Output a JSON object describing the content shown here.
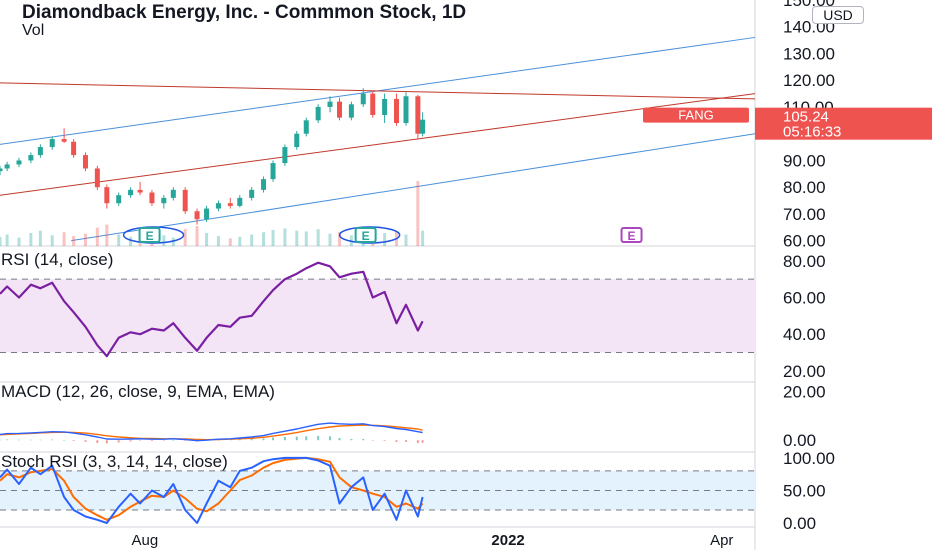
{
  "header": {
    "title": "Diamondback Energy, Inc. - Commmon Stock, 1D",
    "vol_label": "Vol",
    "currency": "USD"
  },
  "colors": {
    "up": "#26a69a",
    "down": "#ef5350",
    "channel_blue": "#4a90d9",
    "channel_red": "#c0392b",
    "rsi_line": "#7b1fa2",
    "rsi_band": "#f3e5f5",
    "macd_line": "#2962ff",
    "signal_line": "#ff6d00",
    "stoch_k": "#2962ff",
    "stoch_d": "#ff6d00",
    "stoch_band": "#e3f2fd",
    "price_tag": "#ef5350",
    "earnings_teal": "#26a69a",
    "earnings_purple": "#ab47bc"
  },
  "chart_data": [
    {
      "type": "candlestick",
      "name": "price",
      "price_tick_labels": [
        "150.00",
        "140.00",
        "130.00",
        "120.00",
        "110.00",
        "100.00",
        "90.00",
        "80.00",
        "70.00",
        "60.00"
      ],
      "price_ticks": [
        150,
        140,
        130,
        120,
        110,
        100,
        90,
        80,
        70,
        60
      ],
      "ylim": [
        58,
        150
      ],
      "xlim": [
        "2021-06-01",
        "2022-04-15"
      ],
      "x_tick_labels": [
        "Aug",
        "2022",
        "Apr"
      ],
      "x_ticks": [
        "2021-08-01",
        "2022-01-01",
        "2022-04-01"
      ],
      "last_price": {
        "symbol": "FANG",
        "price": "105.24",
        "countdown": "05:16:33",
        "value": 105.24
      },
      "series": [
        {
          "x": "2021-06-01",
          "o": 86.0,
          "h": 88.0,
          "l": 84.5,
          "c": 87.0
        },
        {
          "x": "2021-06-04",
          "o": 87.0,
          "h": 89.5,
          "l": 86.0,
          "c": 88.5
        },
        {
          "x": "2021-06-09",
          "o": 88.5,
          "h": 91.0,
          "l": 87.5,
          "c": 90.0
        },
        {
          "x": "2021-06-14",
          "o": 90.0,
          "h": 93.0,
          "l": 89.0,
          "c": 92.0
        },
        {
          "x": "2021-06-18",
          "o": 92.0,
          "h": 96.0,
          "l": 91.0,
          "c": 95.0
        },
        {
          "x": "2021-06-23",
          "o": 95.0,
          "h": 99.0,
          "l": 94.0,
          "c": 98.0
        },
        {
          "x": "2021-06-28",
          "o": 98.0,
          "h": 102.0,
          "l": 96.5,
          "c": 97.0
        },
        {
          "x": "2021-07-02",
          "o": 97.0,
          "h": 98.0,
          "l": 91.0,
          "c": 92.0
        },
        {
          "x": "2021-07-07",
          "o": 92.0,
          "h": 93.0,
          "l": 86.0,
          "c": 87.0
        },
        {
          "x": "2021-07-12",
          "o": 87.0,
          "h": 88.0,
          "l": 79.0,
          "c": 80.0
        },
        {
          "x": "2021-07-16",
          "o": 80.0,
          "h": 81.0,
          "l": 72.0,
          "c": 74.0
        },
        {
          "x": "2021-07-21",
          "o": 74.0,
          "h": 78.0,
          "l": 73.0,
          "c": 77.0
        },
        {
          "x": "2021-07-26",
          "o": 77.0,
          "h": 80.0,
          "l": 76.0,
          "c": 79.0
        },
        {
          "x": "2021-07-30",
          "o": 79.0,
          "h": 82.0,
          "l": 77.0,
          "c": 78.0
        },
        {
          "x": "2021-08-04",
          "o": 78.0,
          "h": 79.0,
          "l": 73.0,
          "c": 74.0
        },
        {
          "x": "2021-08-09",
          "o": 74.0,
          "h": 77.0,
          "l": 72.0,
          "c": 76.0
        },
        {
          "x": "2021-08-13",
          "o": 76.0,
          "h": 80.0,
          "l": 75.0,
          "c": 79.0
        },
        {
          "x": "2021-08-18",
          "o": 79.0,
          "h": 80.0,
          "l": 70.0,
          "c": 71.0
        },
        {
          "x": "2021-08-23",
          "o": 71.0,
          "h": 72.0,
          "l": 66.0,
          "c": 68.0
        },
        {
          "x": "2021-08-27",
          "o": 68.0,
          "h": 73.0,
          "l": 67.0,
          "c": 72.0
        },
        {
          "x": "2021-09-01",
          "o": 72.0,
          "h": 75.0,
          "l": 71.0,
          "c": 74.0
        },
        {
          "x": "2021-09-06",
          "o": 74.0,
          "h": 76.0,
          "l": 72.0,
          "c": 73.0
        },
        {
          "x": "2021-09-10",
          "o": 73.0,
          "h": 77.0,
          "l": 72.5,
          "c": 76.0
        },
        {
          "x": "2021-09-15",
          "o": 76.0,
          "h": 80.0,
          "l": 75.0,
          "c": 79.0
        },
        {
          "x": "2021-09-20",
          "o": 79.0,
          "h": 84.0,
          "l": 78.0,
          "c": 83.0
        },
        {
          "x": "2021-09-24",
          "o": 83.0,
          "h": 90.0,
          "l": 82.0,
          "c": 89.0
        },
        {
          "x": "2021-09-29",
          "o": 89.0,
          "h": 96.0,
          "l": 88.0,
          "c": 95.0
        },
        {
          "x": "2021-10-04",
          "o": 95.0,
          "h": 101.0,
          "l": 94.0,
          "c": 100.0
        },
        {
          "x": "2021-10-08",
          "o": 100.0,
          "h": 106.0,
          "l": 99.0,
          "c": 105.0
        },
        {
          "x": "2021-10-13",
          "o": 105.0,
          "h": 111.0,
          "l": 104.0,
          "c": 110.0
        },
        {
          "x": "2021-10-18",
          "o": 110.0,
          "h": 114.0,
          "l": 108.0,
          "c": 112.0
        },
        {
          "x": "2021-10-22",
          "o": 112.0,
          "h": 113.5,
          "l": 105.0,
          "c": 106.0
        },
        {
          "x": "2021-10-27",
          "o": 106.0,
          "h": 112.0,
          "l": 105.0,
          "c": 111.0
        },
        {
          "x": "2021-11-01",
          "o": 111.0,
          "h": 117.0,
          "l": 110.0,
          "c": 115.0
        },
        {
          "x": "2021-11-05",
          "o": 115.0,
          "h": 116.0,
          "l": 106.0,
          "c": 107.0
        },
        {
          "x": "2021-11-10",
          "o": 107.0,
          "h": 115.0,
          "l": 104.0,
          "c": 113.0
        },
        {
          "x": "2021-11-15",
          "o": 113.0,
          "h": 115.0,
          "l": 103.0,
          "c": 104.0
        },
        {
          "x": "2021-11-19",
          "o": 104.0,
          "h": 115.5,
          "l": 103.0,
          "c": 114.0
        },
        {
          "x": "2021-11-24",
          "o": 114.0,
          "h": 114.5,
          "l": 98.0,
          "c": 100.0
        },
        {
          "x": "2021-11-26",
          "o": 100.0,
          "h": 108.0,
          "l": 99.0,
          "c": 105.24
        }
      ],
      "volume": [
        {
          "x": "2021-06-01",
          "v": 1.2,
          "up": true
        },
        {
          "x": "2021-06-04",
          "v": 1.5,
          "up": true
        },
        {
          "x": "2021-06-09",
          "v": 1.1,
          "up": true
        },
        {
          "x": "2021-06-14",
          "v": 1.7,
          "up": true
        },
        {
          "x": "2021-06-18",
          "v": 2.0,
          "up": true
        },
        {
          "x": "2021-06-23",
          "v": 1.4,
          "up": true
        },
        {
          "x": "2021-06-28",
          "v": 1.8,
          "up": false
        },
        {
          "x": "2021-07-02",
          "v": 1.3,
          "up": false
        },
        {
          "x": "2021-07-07",
          "v": 1.6,
          "up": false
        },
        {
          "x": "2021-07-12",
          "v": 2.4,
          "up": false
        },
        {
          "x": "2021-07-16",
          "v": 2.8,
          "up": false
        },
        {
          "x": "2021-07-21",
          "v": 1.5,
          "up": true
        },
        {
          "x": "2021-07-26",
          "v": 1.2,
          "up": true
        },
        {
          "x": "2021-07-30",
          "v": 1.3,
          "up": false
        },
        {
          "x": "2021-08-04",
          "v": 1.9,
          "up": false
        },
        {
          "x": "2021-08-09",
          "v": 1.4,
          "up": true
        },
        {
          "x": "2021-08-13",
          "v": 1.1,
          "up": true
        },
        {
          "x": "2021-08-18",
          "v": 2.2,
          "up": false
        },
        {
          "x": "2021-08-23",
          "v": 2.6,
          "up": false
        },
        {
          "x": "2021-08-27",
          "v": 1.7,
          "up": true
        },
        {
          "x": "2021-09-01",
          "v": 1.3,
          "up": true
        },
        {
          "x": "2021-09-06",
          "v": 1.0,
          "up": false
        },
        {
          "x": "2021-09-10",
          "v": 1.2,
          "up": true
        },
        {
          "x": "2021-09-15",
          "v": 1.5,
          "up": true
        },
        {
          "x": "2021-09-20",
          "v": 1.8,
          "up": true
        },
        {
          "x": "2021-09-24",
          "v": 2.1,
          "up": true
        },
        {
          "x": "2021-09-29",
          "v": 2.3,
          "up": true
        },
        {
          "x": "2021-10-04",
          "v": 2.0,
          "up": true
        },
        {
          "x": "2021-10-08",
          "v": 1.9,
          "up": true
        },
        {
          "x": "2021-10-13",
          "v": 2.2,
          "up": true
        },
        {
          "x": "2021-10-18",
          "v": 1.6,
          "up": true
        },
        {
          "x": "2021-10-22",
          "v": 1.8,
          "up": false
        },
        {
          "x": "2021-10-27",
          "v": 1.4,
          "up": true
        },
        {
          "x": "2021-11-01",
          "v": 2.0,
          "up": true
        },
        {
          "x": "2021-11-05",
          "v": 2.3,
          "up": false
        },
        {
          "x": "2021-11-10",
          "v": 1.7,
          "up": true
        },
        {
          "x": "2021-11-15",
          "v": 1.9,
          "up": false
        },
        {
          "x": "2021-11-19",
          "v": 1.5,
          "up": true
        },
        {
          "x": "2021-11-24",
          "v": 8.5,
          "up": false
        },
        {
          "x": "2021-11-26",
          "v": 2.0,
          "up": true
        }
      ],
      "trendlines": [
        {
          "color": "blue",
          "points": [
            [
              "2021-06-01",
              96
            ],
            [
              "2022-04-15",
              136
            ]
          ]
        },
        {
          "color": "blue",
          "points": [
            [
              "2021-07-01",
              60
            ],
            [
              "2022-04-15",
              100
            ]
          ]
        },
        {
          "color": "red",
          "points": [
            [
              "2021-06-01",
              119
            ],
            [
              "2022-04-15",
              113
            ]
          ]
        },
        {
          "color": "red",
          "points": [
            [
              "2021-06-01",
              77
            ],
            [
              "2022-04-15",
              115
            ]
          ]
        }
      ],
      "earnings_markers": [
        {
          "x": "2021-08-03",
          "label": "E",
          "color": "teal"
        },
        {
          "x": "2021-11-02",
          "label": "E",
          "color": "teal"
        },
        {
          "x": "2022-02-22",
          "label": "E",
          "color": "purple"
        }
      ]
    },
    {
      "type": "line",
      "name": "rsi",
      "title": "RSI (14, close)",
      "tick_labels": [
        "80.00",
        "60.00",
        "40.00",
        "20.00"
      ],
      "ticks": [
        80,
        60,
        40,
        20
      ],
      "band": [
        30,
        70
      ],
      "ylim": [
        15,
        87
      ],
      "series": [
        {
          "x": "2021-06-01",
          "y": 62
        },
        {
          "x": "2021-06-04",
          "y": 66
        },
        {
          "x": "2021-06-09",
          "y": 60
        },
        {
          "x": "2021-06-14",
          "y": 67
        },
        {
          "x": "2021-06-18",
          "y": 65
        },
        {
          "x": "2021-06-23",
          "y": 68
        },
        {
          "x": "2021-06-28",
          "y": 58
        },
        {
          "x": "2021-07-02",
          "y": 52
        },
        {
          "x": "2021-07-07",
          "y": 44
        },
        {
          "x": "2021-07-12",
          "y": 34
        },
        {
          "x": "2021-07-16",
          "y": 28
        },
        {
          "x": "2021-07-21",
          "y": 38
        },
        {
          "x": "2021-07-26",
          "y": 41
        },
        {
          "x": "2021-07-30",
          "y": 40
        },
        {
          "x": "2021-08-04",
          "y": 43
        },
        {
          "x": "2021-08-09",
          "y": 42
        },
        {
          "x": "2021-08-13",
          "y": 46
        },
        {
          "x": "2021-08-18",
          "y": 38
        },
        {
          "x": "2021-08-23",
          "y": 31
        },
        {
          "x": "2021-08-27",
          "y": 38
        },
        {
          "x": "2021-09-01",
          "y": 45
        },
        {
          "x": "2021-09-06",
          "y": 44
        },
        {
          "x": "2021-09-10",
          "y": 49
        },
        {
          "x": "2021-09-15",
          "y": 50
        },
        {
          "x": "2021-09-20",
          "y": 58
        },
        {
          "x": "2021-09-24",
          "y": 64
        },
        {
          "x": "2021-09-29",
          "y": 70
        },
        {
          "x": "2021-10-04",
          "y": 73
        },
        {
          "x": "2021-10-08",
          "y": 76
        },
        {
          "x": "2021-10-13",
          "y": 79
        },
        {
          "x": "2021-10-18",
          "y": 77
        },
        {
          "x": "2021-10-22",
          "y": 71
        },
        {
          "x": "2021-10-27",
          "y": 73
        },
        {
          "x": "2021-11-01",
          "y": 74
        },
        {
          "x": "2021-11-05",
          "y": 60
        },
        {
          "x": "2021-11-10",
          "y": 63
        },
        {
          "x": "2021-11-15",
          "y": 46
        },
        {
          "x": "2021-11-19",
          "y": 56
        },
        {
          "x": "2021-11-24",
          "y": 42
        },
        {
          "x": "2021-11-26",
          "y": 47
        }
      ]
    },
    {
      "type": "line",
      "name": "macd",
      "title": "MACD (12, 26, close, 9, EMA, EMA)",
      "tick_labels": [
        "20.00",
        "0.00"
      ],
      "ticks": [
        20,
        0
      ],
      "ylim": [
        -4,
        23
      ],
      "macd": [
        2.4,
        2.7,
        2.8,
        3.0,
        3.2,
        3.5,
        3.4,
        2.9,
        2.2,
        1.3,
        0.5,
        0.4,
        0.5,
        0.6,
        0.4,
        0.4,
        0.6,
        0.3,
        -0.2,
        0.0,
        0.4,
        0.6,
        0.9,
        1.3,
        1.9,
        2.8,
        3.7,
        4.6,
        5.5,
        6.5,
        7.0,
        6.7,
        6.5,
        6.7,
        6.0,
        5.6,
        4.8,
        4.4,
        3.5,
        3.1
      ],
      "signal": [
        2.2,
        2.4,
        2.6,
        2.8,
        3.0,
        3.2,
        3.3,
        3.2,
        2.9,
        2.4,
        1.8,
        1.3,
        1.0,
        0.8,
        0.7,
        0.6,
        0.6,
        0.5,
        0.3,
        0.2,
        0.3,
        0.4,
        0.6,
        0.8,
        1.2,
        1.7,
        2.4,
        3.1,
        3.9,
        4.7,
        5.4,
        5.8,
        6.0,
        6.2,
        6.1,
        5.9,
        5.5,
        5.1,
        4.6,
        4.1
      ]
    },
    {
      "type": "line",
      "name": "stoch_rsi",
      "title": "Stoch RSI (3, 3, 14, 14, close)",
      "tick_labels": [
        "100.00",
        "50.00",
        "0.00"
      ],
      "ticks": [
        100,
        50,
        0
      ],
      "band": [
        20,
        80
      ],
      "ylim": [
        -3,
        106
      ],
      "k": [
        70,
        82,
        60,
        85,
        75,
        88,
        40,
        20,
        10,
        5,
        0,
        25,
        45,
        30,
        50,
        40,
        60,
        20,
        0,
        30,
        65,
        55,
        80,
        85,
        95,
        98,
        100,
        100,
        100,
        96,
        88,
        30,
        55,
        70,
        20,
        45,
        5,
        50,
        10,
        40
      ],
      "d": [
        65,
        75,
        70,
        78,
        80,
        83,
        65,
        40,
        22,
        12,
        5,
        12,
        25,
        33,
        42,
        40,
        50,
        38,
        22,
        18,
        30,
        50,
        66,
        73,
        85,
        92,
        97,
        99,
        100,
        98,
        94,
        70,
        55,
        50,
        45,
        40,
        25,
        30,
        22,
        30
      ]
    }
  ]
}
